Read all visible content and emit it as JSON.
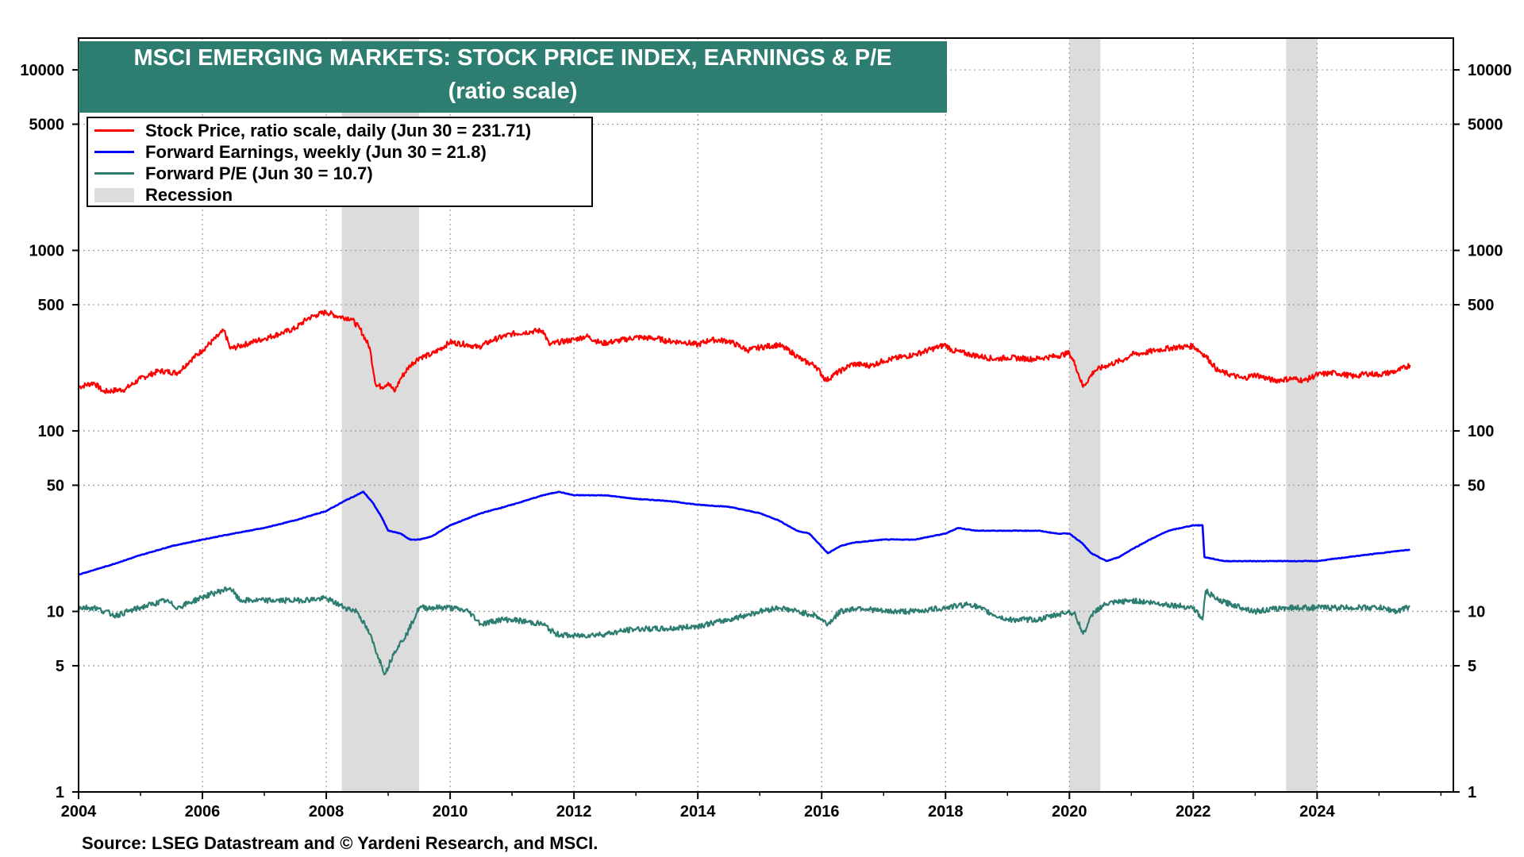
{
  "title": {
    "line1": "MSCI EMERGING MARKETS: STOCK PRICE INDEX, EARNINGS & P/E",
    "line2": "(ratio scale)"
  },
  "legend": {
    "stock_price": "Stock Price, ratio scale, daily (Jun 30 = 231.71)",
    "forward_earnings": "Forward Earnings, weekly (Jun 30 = 21.8)",
    "forward_pe": "Forward P/E (Jun 30 = 10.7)",
    "recession": "Recession"
  },
  "source": "Source: LSEG Datastream and © Yardeni Research, and MSCI.",
  "colors": {
    "stock_price": "#ff0000",
    "forward_earnings": "#0000ff",
    "forward_pe": "#2e7d71",
    "recession": "#dcdcdc",
    "title_bg": "#2e7d71"
  },
  "chart_data": {
    "type": "line",
    "y_scale": "log",
    "ylim": [
      1,
      15000
    ],
    "xlim": [
      2004,
      2026.2
    ],
    "grid": true,
    "legend_position": "top-left",
    "x_ticks": [
      "2004",
      "2006",
      "2008",
      "2010",
      "2012",
      "2014",
      "2016",
      "2018",
      "2020",
      "2022",
      "2024"
    ],
    "y_ticks": [
      {
        "value": 1,
        "label": "1"
      },
      {
        "value": 5,
        "label": "5"
      },
      {
        "value": 10,
        "label": "10"
      },
      {
        "value": 50,
        "label": "50"
      },
      {
        "value": 100,
        "label": "100"
      },
      {
        "value": 500,
        "label": "500"
      },
      {
        "value": 1000,
        "label": "1000"
      },
      {
        "value": 5000,
        "label": "5000"
      },
      {
        "value": 10000,
        "label": "10000"
      }
    ],
    "recessions": [
      [
        2008.25,
        2009.5
      ],
      [
        2020.0,
        2020.5
      ],
      [
        2023.5,
        2024.0
      ]
    ],
    "series": [
      {
        "key": "stock_price",
        "name": "Stock Price, ratio scale, daily (Jun 30 = 231.71)",
        "x": [
          2004.0,
          2004.25,
          2004.4,
          2004.75,
          2005.0,
          2005.3,
          2005.6,
          2005.8,
          2006.0,
          2006.35,
          2006.45,
          2006.6,
          2006.8,
          2007.0,
          2007.3,
          2007.5,
          2007.7,
          2007.85,
          2008.0,
          2008.2,
          2008.4,
          2008.55,
          2008.7,
          2008.8,
          2008.9,
          2009.0,
          2009.1,
          2009.2,
          2009.35,
          2009.5,
          2009.7,
          2010.0,
          2010.3,
          2010.45,
          2010.7,
          2011.0,
          2011.3,
          2011.5,
          2011.6,
          2011.75,
          2012.0,
          2012.2,
          2012.45,
          2012.7,
          2013.0,
          2013.35,
          2013.5,
          2013.8,
          2014.0,
          2014.2,
          2014.5,
          2014.8,
          2015.0,
          2015.3,
          2015.5,
          2015.7,
          2015.9,
          2016.07,
          2016.2,
          2016.5,
          2016.8,
          2017.0,
          2017.5,
          2018.0,
          2018.1,
          2018.4,
          2018.8,
          2019.0,
          2019.4,
          2019.6,
          2019.8,
          2020.0,
          2020.1,
          2020.22,
          2020.4,
          2020.6,
          2020.9,
          2021.0,
          2021.2,
          2021.4,
          2021.7,
          2022.0,
          2022.2,
          2022.4,
          2022.6,
          2022.8,
          2023.0,
          2023.3,
          2023.6,
          2023.8,
          2024.0,
          2024.3,
          2024.6,
          2024.8,
          2025.0,
          2025.3,
          2025.5
        ],
        "y": [
          175,
          185,
          165,
          170,
          195,
          215,
          210,
          245,
          280,
          360,
          285,
          295,
          310,
          325,
          350,
          370,
          420,
          440,
          455,
          430,
          420,
          365,
          290,
          180,
          175,
          185,
          165,
          195,
          230,
          255,
          265,
          310,
          300,
          290,
          320,
          345,
          355,
          360,
          300,
          310,
          320,
          335,
          305,
          315,
          330,
          325,
          315,
          310,
          300,
          320,
          315,
          280,
          290,
          300,
          275,
          245,
          230,
          190,
          205,
          235,
          230,
          245,
          265,
          300,
          280,
          265,
          250,
          255,
          250,
          255,
          260,
          270,
          230,
          175,
          215,
          230,
          250,
          265,
          270,
          280,
          290,
          295,
          260,
          215,
          205,
          195,
          205,
          190,
          195,
          190,
          205,
          210,
          200,
          208,
          205,
          215,
          232
        ]
      },
      {
        "key": "forward_earnings",
        "name": "Forward Earnings, weekly (Jun 30 = 21.8)",
        "x": [
          2004.0,
          2004.5,
          2005.0,
          2005.5,
          2006.0,
          2006.5,
          2007.0,
          2007.5,
          2008.0,
          2008.3,
          2008.6,
          2008.75,
          2008.9,
          2009.0,
          2009.2,
          2009.35,
          2009.5,
          2009.7,
          2010.0,
          2010.5,
          2011.0,
          2011.5,
          2011.75,
          2012.0,
          2012.5,
          2013.0,
          2013.5,
          2014.0,
          2014.5,
          2015.0,
          2015.3,
          2015.6,
          2015.8,
          2016.1,
          2016.3,
          2016.5,
          2017.0,
          2017.5,
          2018.0,
          2018.2,
          2018.5,
          2019.0,
          2019.5,
          2019.8,
          2020.0,
          2020.2,
          2020.35,
          2020.6,
          2020.8,
          2021.0,
          2021.3,
          2021.6,
          2022.0,
          2022.15,
          2022.18,
          2022.5,
          2023.0,
          2023.5,
          2024.0,
          2024.5,
          2025.0,
          2025.5
        ],
        "y": [
          16,
          18,
          20.5,
          23,
          25,
          27,
          29,
          32,
          36,
          41,
          46,
          40,
          33,
          28,
          27,
          25,
          25,
          26,
          30,
          35,
          39,
          44,
          46,
          44,
          44,
          42,
          41,
          39,
          38,
          35,
          32,
          28,
          27,
          21,
          23,
          24,
          25,
          25,
          27,
          29,
          28,
          28,
          28,
          27,
          27,
          24,
          21,
          19,
          20,
          22,
          25,
          28,
          30,
          30,
          20,
          19,
          19,
          19,
          19,
          20,
          21,
          22
        ]
      },
      {
        "key": "forward_pe",
        "name": "Forward P/E (Jun 30 = 10.7)",
        "x": [
          2004.0,
          2004.25,
          2004.6,
          2005.0,
          2005.4,
          2005.6,
          2006.0,
          2006.3,
          2006.45,
          2006.6,
          2007.0,
          2007.5,
          2008.0,
          2008.3,
          2008.5,
          2008.7,
          2008.85,
          2008.95,
          2009.1,
          2009.3,
          2009.5,
          2010.0,
          2010.3,
          2010.5,
          2010.8,
          2011.0,
          2011.5,
          2011.7,
          2012.0,
          2012.5,
          2013.0,
          2013.5,
          2014.0,
          2014.5,
          2015.0,
          2015.3,
          2015.6,
          2015.9,
          2016.1,
          2016.3,
          2016.6,
          2017.0,
          2017.5,
          2018.0,
          2018.4,
          2018.8,
          2019.0,
          2019.5,
          2020.0,
          2020.1,
          2020.22,
          2020.4,
          2020.6,
          2021.0,
          2021.5,
          2022.0,
          2022.15,
          2022.2,
          2022.4,
          2022.8,
          2023.0,
          2023.5,
          2024.0,
          2024.5,
          2025.0,
          2025.3,
          2025.5
        ],
        "y": [
          10.5,
          10.5,
          9.5,
          10.5,
          11.5,
          10.5,
          12,
          13,
          13.5,
          11.5,
          11.5,
          11.5,
          11.8,
          10.5,
          10,
          7.5,
          5.5,
          4.5,
          6,
          7.5,
          10.5,
          10.5,
          10,
          8.5,
          9,
          9,
          8.5,
          7.5,
          7.3,
          7.5,
          8,
          8,
          8.3,
          9,
          10,
          10.5,
          10,
          9.5,
          8.5,
          10,
          10.5,
          10,
          10,
          10.5,
          11,
          9.5,
          9,
          9,
          10,
          9.5,
          7.5,
          10,
          11,
          11.5,
          11,
          10.5,
          9,
          13,
          11.5,
          10.5,
          10,
          10.5,
          10.5,
          10.5,
          10.5,
          10,
          10.7
        ]
      }
    ]
  }
}
